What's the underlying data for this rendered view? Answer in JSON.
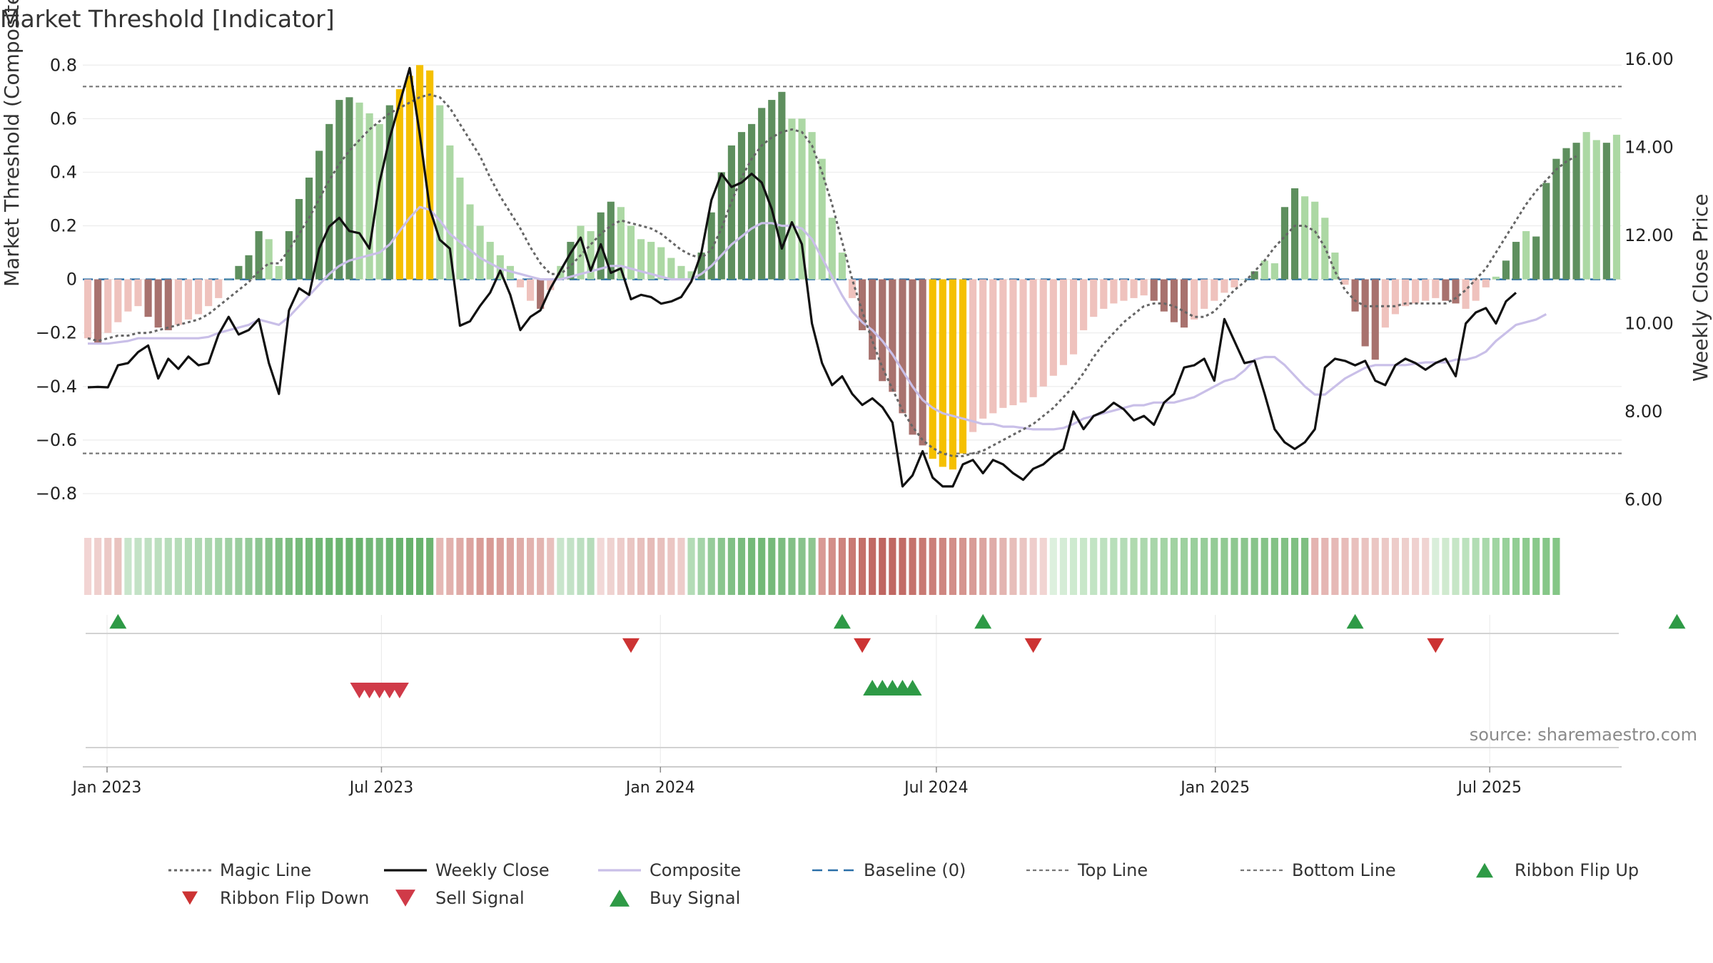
{
  "title": "Market Threshold [Indicator]",
  "source_label": "source: sharemaestro.com",
  "colors": {
    "bar_dark_green": "#5e8f5e",
    "bar_light_green": "#acd8a4",
    "bar_dark_red": "#a8726e",
    "bar_light_red": "#efc2bd",
    "bar_extreme": "#f5c000",
    "weekly_close": "#111111",
    "composite": "#c9bfe8",
    "magic_line": "#666666",
    "baseline": "#2a6fa8",
    "threshold_lines": "#777777",
    "buy": "#2e9a46",
    "sell": "#d03a48",
    "flip_down": "#cc3333"
  },
  "chart_data": {
    "type": "bar",
    "title": "Market Threshold [Indicator]",
    "ylabel": "Market Threshold (Composite)",
    "y2label": "Weekly Close Price",
    "ylim": [
      -0.88,
      0.83
    ],
    "y2lim": [
      5.65,
      16.05
    ],
    "yticks": [
      -0.8,
      -0.6,
      -0.4,
      -0.2,
      0,
      0.2,
      0.4,
      0.6,
      0.8
    ],
    "ytick_labels": [
      "−0.8",
      "−0.6",
      "−0.4",
      "−0.2",
      "0",
      "0.2",
      "0.4",
      "0.6",
      "0.8"
    ],
    "y2ticks": [
      6,
      8,
      10,
      12,
      14,
      16
    ],
    "y2tick_labels": [
      "6.00",
      "8.00",
      "10.00",
      "12.00",
      "14.00",
      "16.00"
    ],
    "xlim": [
      "2022-12-16",
      "2025-09-26"
    ],
    "xticks": [
      "2023-01-01",
      "2023-07-01",
      "2024-01-01",
      "2024-07-01",
      "2025-01-01",
      "2025-07-01"
    ],
    "xtick_labels": [
      "Jan 2023",
      "Jul 2023",
      "Jan 2024",
      "Jul 2024",
      "Jan 2025",
      "Jul 2025"
    ],
    "top_line": 0.72,
    "bottom_line": -0.65,
    "grid": true,
    "legend_position": "bottom",
    "legend": [
      {
        "key": "magic",
        "label": "Magic Line"
      },
      {
        "key": "close",
        "label": "Weekly Close"
      },
      {
        "key": "composite",
        "label": "Composite"
      },
      {
        "key": "baseline",
        "label": "Baseline (0)"
      },
      {
        "key": "top",
        "label": "Top Line"
      },
      {
        "key": "bottom",
        "label": "Bottom Line"
      },
      {
        "key": "flipup",
        "label": "Ribbon Flip Up"
      },
      {
        "key": "flipdown",
        "label": "Ribbon Flip Down"
      },
      {
        "key": "sell",
        "label": "Sell Signal"
      },
      {
        "key": "buy",
        "label": "Buy Signal"
      }
    ],
    "composite_bars": [
      -0.22,
      -0.24,
      -0.2,
      -0.16,
      -0.12,
      -0.1,
      -0.14,
      -0.18,
      -0.19,
      -0.17,
      -0.15,
      -0.13,
      -0.1,
      -0.07,
      0.0,
      0.05,
      0.09,
      0.18,
      0.15,
      0.05,
      0.18,
      0.3,
      0.38,
      0.48,
      0.58,
      0.67,
      0.68,
      0.66,
      0.62,
      0.58,
      0.65,
      0.71,
      0.76,
      0.8,
      0.78,
      0.65,
      0.5,
      0.38,
      0.28,
      0.2,
      0.14,
      0.09,
      0.05,
      -0.03,
      -0.08,
      -0.11,
      -0.04,
      0.05,
      0.14,
      0.2,
      0.18,
      0.25,
      0.29,
      0.27,
      0.2,
      0.15,
      0.14,
      0.12,
      0.08,
      0.05,
      0.03,
      0.1,
      0.25,
      0.4,
      0.5,
      0.55,
      0.58,
      0.64,
      0.67,
      0.7,
      0.6,
      0.6,
      0.55,
      0.45,
      0.23,
      0.1,
      -0.07,
      -0.19,
      -0.3,
      -0.38,
      -0.42,
      -0.5,
      -0.58,
      -0.62,
      -0.67,
      -0.7,
      -0.71,
      -0.65,
      -0.57,
      -0.52,
      -0.5,
      -0.48,
      -0.47,
      -0.46,
      -0.44,
      -0.4,
      -0.36,
      -0.32,
      -0.28,
      -0.19,
      -0.14,
      -0.11,
      -0.09,
      -0.08,
      -0.07,
      -0.06,
      -0.08,
      -0.12,
      -0.16,
      -0.18,
      -0.15,
      -0.11,
      -0.08,
      -0.05,
      -0.03,
      0.0,
      0.03,
      0.07,
      0.06,
      0.27,
      0.34,
      0.31,
      0.29,
      0.23,
      0.1,
      -0.02,
      -0.12,
      -0.25,
      -0.3,
      -0.18,
      -0.13,
      -0.1,
      -0.09,
      -0.08,
      -0.07,
      -0.08,
      -0.09,
      -0.11,
      -0.08,
      -0.03,
      0.01,
      0.07,
      0.14,
      0.18,
      0.16,
      0.36,
      0.45,
      0.49,
      0.51,
      0.55,
      0.52,
      0.51,
      0.54
    ],
    "composite_bar_shades": [
      "lr",
      "dr",
      "lr",
      "lr",
      "lr",
      "lr",
      "dr",
      "dr",
      "dr",
      "lr",
      "lr",
      "lr",
      "lr",
      "lr",
      "lg",
      "dg",
      "dg",
      "dg",
      "lg",
      "lg",
      "dg",
      "dg",
      "dg",
      "dg",
      "dg",
      "dg",
      "dg",
      "lg",
      "lg",
      "lg",
      "dg",
      "y",
      "y",
      "y",
      "y",
      "lg",
      "lg",
      "lg",
      "lg",
      "lg",
      "lg",
      "lg",
      "lg",
      "lr",
      "lr",
      "dr",
      "lr",
      "lg",
      "dg",
      "lg",
      "lg",
      "dg",
      "dg",
      "lg",
      "lg",
      "lg",
      "lg",
      "lg",
      "lg",
      "lg",
      "lg",
      "dg",
      "dg",
      "dg",
      "dg",
      "dg",
      "dg",
      "dg",
      "dg",
      "dg",
      "lg",
      "lg",
      "lg",
      "lg",
      "lg",
      "lg",
      "lr",
      "dr",
      "dr",
      "dr",
      "dr",
      "dr",
      "dr",
      "dr",
      "y",
      "y",
      "y",
      "y",
      "lr",
      "lr",
      "lr",
      "lr",
      "lr",
      "lr",
      "lr",
      "lr",
      "lr",
      "lr",
      "lr",
      "lr",
      "lr",
      "lr",
      "lr",
      "lr",
      "lr",
      "lr",
      "dr",
      "dr",
      "dr",
      "dr",
      "lr",
      "lr",
      "lr",
      "lr",
      "lr",
      "lg",
      "dg",
      "lg",
      "lg",
      "dg",
      "dg",
      "lg",
      "lg",
      "lg",
      "lg",
      "lr",
      "dr",
      "dr",
      "dr",
      "lr",
      "lr",
      "lr",
      "lr",
      "lr",
      "lr",
      "dr",
      "dr",
      "lr",
      "lr",
      "lr",
      "lg",
      "dg",
      "dg",
      "lg",
      "dg",
      "dg",
      "dg",
      "dg",
      "dg",
      "lg",
      "lg",
      "dg"
    ],
    "weekly_close": [
      8.55,
      8.56,
      8.55,
      9.05,
      9.1,
      9.35,
      9.5,
      8.75,
      9.2,
      8.97,
      9.25,
      9.05,
      9.1,
      9.75,
      10.15,
      9.75,
      9.85,
      10.1,
      9.1,
      8.4,
      10.3,
      10.8,
      10.65,
      11.7,
      12.2,
      12.4,
      12.1,
      12.05,
      11.7,
      13.2,
      14.2,
      15.0,
      15.8,
      14.3,
      12.6,
      11.9,
      11.7,
      9.95,
      10.05,
      10.4,
      10.7,
      11.2,
      10.65,
      9.85,
      10.15,
      10.3,
      10.8,
      11.2,
      11.6,
      11.95,
      11.2,
      11.8,
      11.15,
      11.25,
      10.55,
      10.65,
      10.6,
      10.45,
      10.5,
      10.6,
      10.95,
      11.6,
      12.8,
      13.4,
      13.1,
      13.2,
      13.4,
      13.2,
      12.6,
      11.7,
      12.3,
      11.8,
      10.0,
      9.1,
      8.6,
      8.8,
      8.4,
      8.15,
      8.3,
      8.1,
      7.75,
      6.3,
      6.55,
      7.1,
      6.5,
      6.3,
      6.3,
      6.8,
      6.9,
      6.6,
      6.9,
      6.8,
      6.6,
      6.45,
      6.7,
      6.8,
      7.0,
      7.15,
      8.0,
      7.6,
      7.9,
      8.0,
      8.2,
      8.05,
      7.8,
      7.9,
      7.7,
      8.2,
      8.4,
      9.0,
      9.05,
      9.2,
      8.7,
      10.1,
      9.6,
      9.1,
      9.15,
      8.4,
      7.6,
      7.3,
      7.15,
      7.3,
      7.6,
      9.0,
      9.2,
      9.15,
      9.05,
      9.15,
      8.7,
      8.6,
      9.05,
      9.2,
      9.1,
      8.95,
      9.1,
      9.2,
      8.8,
      10.0,
      10.25,
      10.35,
      10.0,
      10.5,
      10.7
    ],
    "composite_line": [
      -0.24,
      -0.24,
      -0.24,
      -0.235,
      -0.23,
      -0.22,
      -0.22,
      -0.22,
      -0.22,
      -0.22,
      -0.22,
      -0.22,
      -0.215,
      -0.2,
      -0.19,
      -0.18,
      -0.17,
      -0.15,
      -0.16,
      -0.17,
      -0.14,
      -0.1,
      -0.06,
      -0.02,
      0.02,
      0.05,
      0.07,
      0.08,
      0.09,
      0.1,
      0.13,
      0.18,
      0.23,
      0.27,
      0.26,
      0.22,
      0.17,
      0.14,
      0.11,
      0.08,
      0.06,
      0.04,
      0.03,
      0.02,
      0.01,
      0.0,
      0.0,
      0.0,
      0.01,
      0.02,
      0.03,
      0.04,
      0.05,
      0.05,
      0.04,
      0.03,
      0.02,
      0.01,
      0.0,
      0.0,
      0.0,
      0.02,
      0.05,
      0.09,
      0.13,
      0.16,
      0.19,
      0.21,
      0.21,
      0.2,
      0.2,
      0.19,
      0.15,
      0.08,
      0.01,
      -0.06,
      -0.12,
      -0.16,
      -0.19,
      -0.23,
      -0.28,
      -0.34,
      -0.4,
      -0.45,
      -0.48,
      -0.5,
      -0.51,
      -0.52,
      -0.53,
      -0.54,
      -0.54,
      -0.55,
      -0.55,
      -0.555,
      -0.56,
      -0.56,
      -0.56,
      -0.555,
      -0.54,
      -0.52,
      -0.51,
      -0.5,
      -0.49,
      -0.48,
      -0.47,
      -0.47,
      -0.46,
      -0.46,
      -0.46,
      -0.45,
      -0.44,
      -0.42,
      -0.4,
      -0.38,
      -0.37,
      -0.34,
      -0.3,
      -0.29,
      -0.29,
      -0.32,
      -0.36,
      -0.4,
      -0.43,
      -0.43,
      -0.4,
      -0.37,
      -0.35,
      -0.33,
      -0.32,
      -0.32,
      -0.32,
      -0.32,
      -0.315,
      -0.31,
      -0.31,
      -0.31,
      -0.3,
      -0.3,
      -0.29,
      -0.27,
      -0.23,
      -0.2,
      -0.17,
      -0.16,
      -0.15,
      -0.13
    ],
    "magic_line": [
      -0.22,
      -0.23,
      -0.22,
      -0.21,
      -0.21,
      -0.2,
      -0.2,
      -0.19,
      -0.18,
      -0.17,
      -0.16,
      -0.15,
      -0.13,
      -0.1,
      -0.07,
      -0.04,
      -0.01,
      0.03,
      0.06,
      0.06,
      0.11,
      0.17,
      0.23,
      0.3,
      0.37,
      0.43,
      0.48,
      0.52,
      0.56,
      0.59,
      0.62,
      0.64,
      0.66,
      0.68,
      0.69,
      0.68,
      0.64,
      0.58,
      0.52,
      0.46,
      0.38,
      0.31,
      0.25,
      0.19,
      0.12,
      0.06,
      0.02,
      0.02,
      0.05,
      0.09,
      0.13,
      0.17,
      0.2,
      0.22,
      0.21,
      0.2,
      0.19,
      0.17,
      0.14,
      0.11,
      0.09,
      0.08,
      0.11,
      0.19,
      0.29,
      0.38,
      0.45,
      0.5,
      0.53,
      0.55,
      0.56,
      0.55,
      0.5,
      0.4,
      0.28,
      0.14,
      0.0,
      -0.12,
      -0.23,
      -0.33,
      -0.41,
      -0.49,
      -0.55,
      -0.6,
      -0.63,
      -0.65,
      -0.66,
      -0.66,
      -0.65,
      -0.64,
      -0.62,
      -0.6,
      -0.58,
      -0.56,
      -0.54,
      -0.51,
      -0.48,
      -0.44,
      -0.4,
      -0.35,
      -0.29,
      -0.24,
      -0.2,
      -0.16,
      -0.13,
      -0.1,
      -0.09,
      -0.09,
      -0.1,
      -0.12,
      -0.14,
      -0.14,
      -0.12,
      -0.08,
      -0.04,
      -0.01,
      0.03,
      0.07,
      0.12,
      0.16,
      0.2,
      0.2,
      0.18,
      0.12,
      0.03,
      -0.04,
      -0.08,
      -0.1,
      -0.1,
      -0.1,
      -0.1,
      -0.09,
      -0.09,
      -0.09,
      -0.09,
      -0.09,
      -0.07,
      -0.04,
      0.0,
      0.04,
      0.1,
      0.16,
      0.22,
      0.28,
      0.33,
      0.37,
      0.41,
      0.44,
      0.46
    ],
    "ribbon_colors": [
      "#f2d4d3",
      "#efcfcd",
      "#ecc9c6",
      "#e9c3bf",
      "#c8e5cb",
      "#c3e2c6",
      "#bfe0c2",
      "#bcdfbf",
      "#b7ddbb",
      "#b5dcb8",
      "#b1dab4",
      "#aed8b1",
      "#aad6ad",
      "#a4d4a8",
      "#9fd0a3",
      "#9acd9e",
      "#94ca98",
      "#8cc591",
      "#86c28a",
      "#80bf84",
      "#7bbc7f",
      "#75ba7a",
      "#73b978",
      "#70b775",
      "#6cb571",
      "#6ab46f",
      "#69b36e",
      "#68b26d",
      "#70b675",
      "#74b879",
      "#6cb572",
      "#68b36e",
      "#66b16b",
      "#68b26d",
      "#6cb470",
      "#e5b8b5",
      "#e2b1ad",
      "#dfaaa6",
      "#dca39f",
      "#d99c97",
      "#d89a95",
      "#da9f9b",
      "#dca5a1",
      "#dfaca8",
      "#e2b2ae",
      "#e3b5b1",
      "#e8c0bd",
      "#c9e5cc",
      "#c3e2c6",
      "#bcdfc0",
      "#b6dcba",
      "#f2d8d7",
      "#efd2d0",
      "#edccca",
      "#eac6c3",
      "#e8c0bd",
      "#e6bbb8",
      "#e8c0bd",
      "#ebc6c3",
      "#edccca",
      "#b3dcb6",
      "#a4d4a8",
      "#96cc9a",
      "#8ac68e",
      "#81c085",
      "#7abc7e",
      "#75ba79",
      "#73b977",
      "#76ba7a",
      "#7cbd80",
      "#82c086",
      "#88c38c",
      "#8ec690",
      "#d99a95",
      "#d38f89",
      "#ce847e",
      "#c97a74",
      "#c47069",
      "#c16964",
      "#bf6560",
      "#c06762",
      "#c26b66",
      "#c5726c",
      "#c87972",
      "#cb7f79",
      "#ce8680",
      "#d28e88",
      "#d5958f",
      "#d89c97",
      "#dca5a0",
      "#dfaca8",
      "#e3b5b1",
      "#e7beba",
      "#eac5c2",
      "#eecdcb",
      "#f1d4d2",
      "#ddf0de",
      "#d5ecd6",
      "#ceeacf",
      "#c8e7c9",
      "#c2e4c4",
      "#bde1bf",
      "#b8dfba",
      "#b4dcb6",
      "#b0daaf",
      "#acd8ad",
      "#a8d6a9",
      "#a4d4a5",
      "#a1d2a2",
      "#9ed19f",
      "#9acf9c",
      "#97cd99",
      "#94cb96",
      "#91ca93",
      "#8ec890",
      "#8bc68d",
      "#88c48a",
      "#86c388",
      "#84c286",
      "#82c184",
      "#80c082",
      "#7fbf81",
      "#e4b3b0",
      "#e5b6b3",
      "#e6b9b6",
      "#e8bcb9",
      "#e9c0bd",
      "#eac3c0",
      "#ebc6c3",
      "#ecc9c6",
      "#edccc9",
      "#eecfcc",
      "#efd1cf",
      "#f0d4d2",
      "#d9eeda",
      "#d0eacf",
      "#c6e6c6",
      "#bce2bd",
      "#b2ddb4",
      "#a9d9ab",
      "#a0d5a2",
      "#98d19a",
      "#92ce94",
      "#8dcb8f",
      "#89c98b",
      "#86c788",
      "#84c686"
    ],
    "ribbon_flip_up_weeks": [
      3,
      75,
      89,
      126,
      158
    ],
    "ribbon_flip_down_weeks": [
      54,
      77,
      94,
      134
    ],
    "sell_signal_weeks": [
      27,
      28,
      29,
      30,
      31
    ],
    "buy_signal_weeks": [
      78,
      79,
      80,
      81,
      82
    ]
  }
}
